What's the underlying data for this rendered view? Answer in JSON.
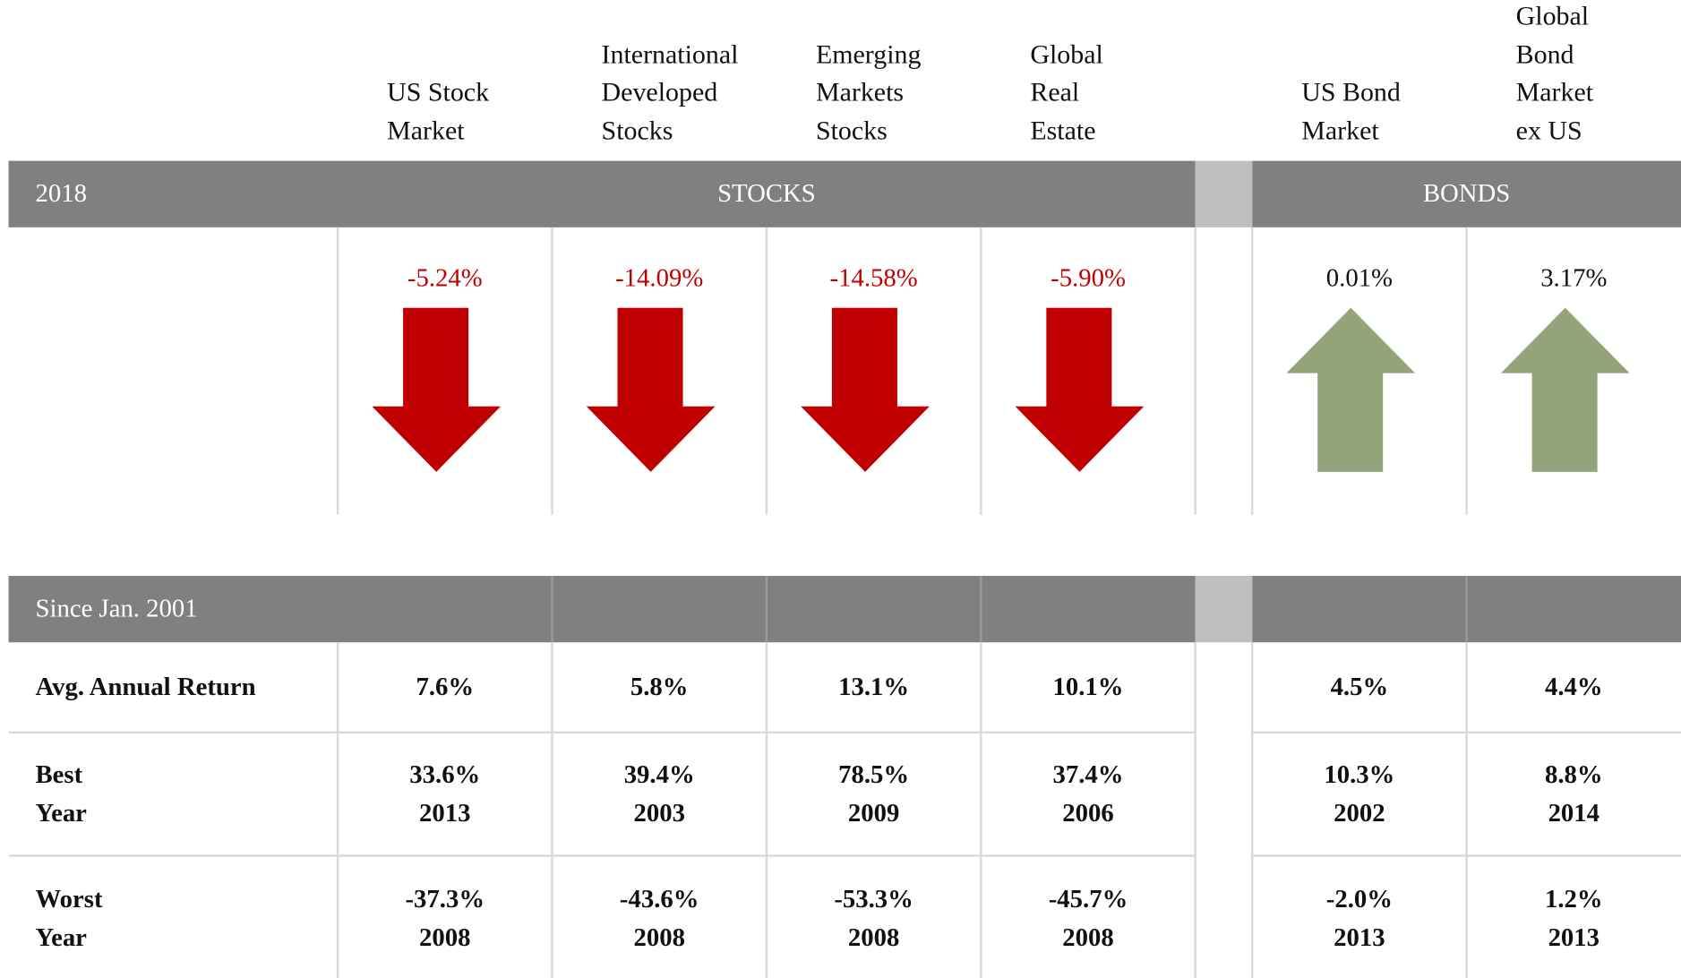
{
  "columns": [
    {
      "label": [
        "US Stock",
        "Market"
      ],
      "return_2018": "-5.24%",
      "direction": "down",
      "avg": "7.6%",
      "best": [
        "33.6%",
        "2013"
      ],
      "worst": [
        "-37.3%",
        "2008"
      ]
    },
    {
      "label": [
        "International",
        "Developed",
        "Stocks"
      ],
      "return_2018": "-14.09%",
      "direction": "down",
      "avg": "5.8%",
      "best": [
        "39.4%",
        "2003"
      ],
      "worst": [
        "-43.6%",
        "2008"
      ]
    },
    {
      "label": [
        "Emerging",
        "Markets",
        "Stocks"
      ],
      "return_2018": "-14.58%",
      "direction": "down",
      "avg": "13.1%",
      "best": [
        "78.5%",
        "2009"
      ],
      "worst": [
        "-53.3%",
        "2008"
      ]
    },
    {
      "label": [
        "Global",
        "Real",
        "Estate"
      ],
      "return_2018": "-5.90%",
      "direction": "down",
      "avg": "10.1%",
      "best": [
        "37.4%",
        "2006"
      ],
      "worst": [
        "-45.7%",
        "2008"
      ]
    },
    {
      "label": [
        "US Bond",
        "Market"
      ],
      "return_2018": "0.01%",
      "direction": "up",
      "avg": "4.5%",
      "best": [
        "10.3%",
        "2002"
      ],
      "worst": [
        "-2.0%",
        "2013"
      ]
    },
    {
      "label": [
        "Global",
        "Bond",
        "Market",
        "ex US"
      ],
      "return_2018": "3.17%",
      "direction": "up",
      "avg": "4.4%",
      "best": [
        "8.8%",
        "2014"
      ],
      "worst": [
        "1.2%",
        "2013"
      ]
    }
  ],
  "section_2018": {
    "label": "2018",
    "groups": [
      "STOCKS",
      "BONDS"
    ]
  },
  "section_since": {
    "label": "Since Jan. 2001",
    "row_labels": {
      "avg": [
        "Avg. Annual Return"
      ],
      "best": [
        "Best",
        "Year"
      ],
      "worst": [
        "Worst",
        "Year"
      ]
    }
  }
}
